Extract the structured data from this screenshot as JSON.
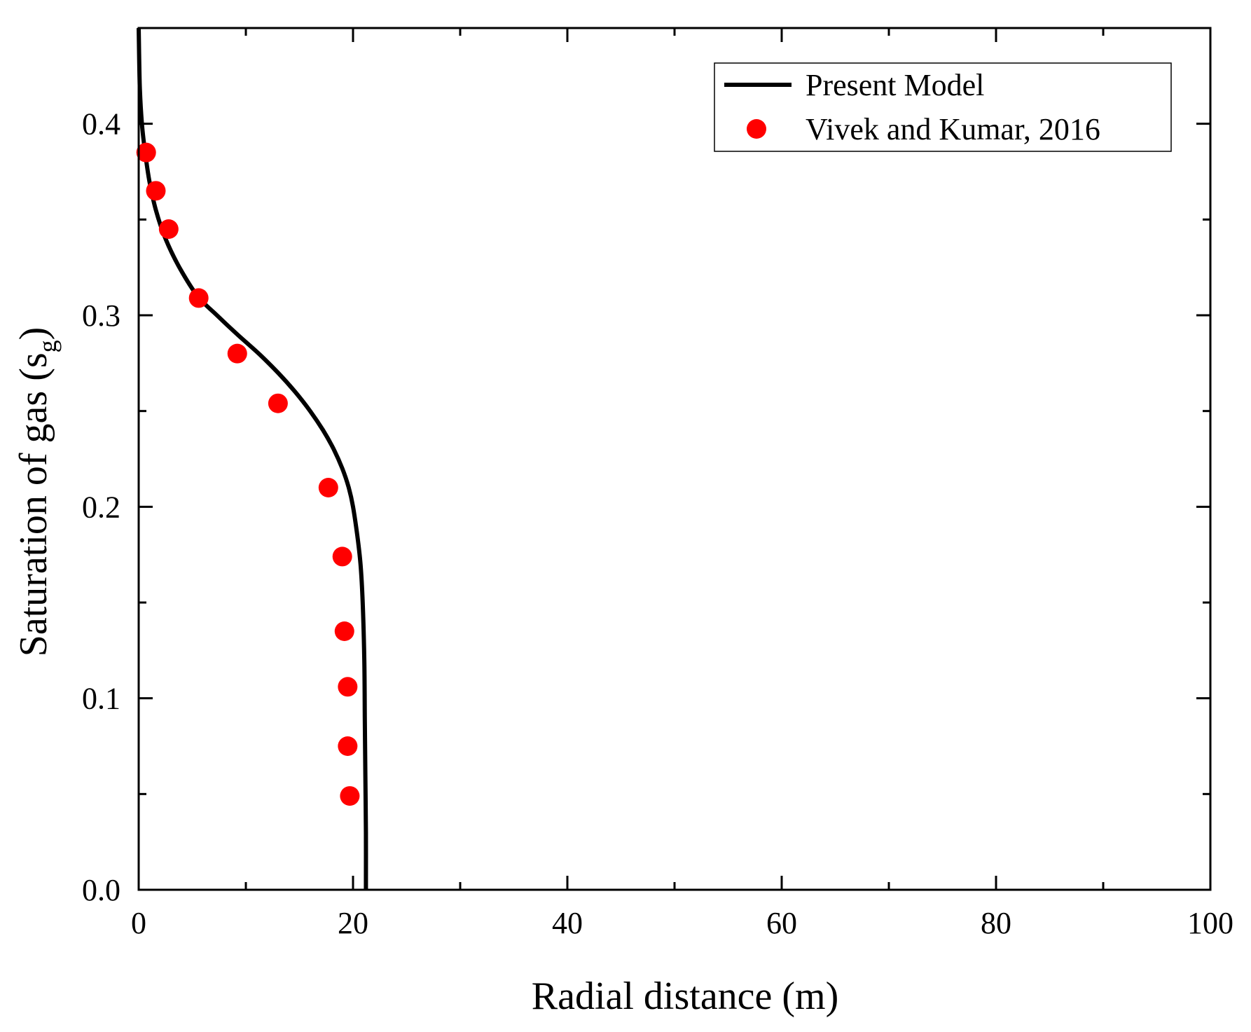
{
  "chart_data": {
    "type": "line",
    "title": "",
    "xlabel": "Radial distance (m)",
    "ylabel_main": "Saturation of gas (s",
    "ylabel_sub": "g",
    "ylabel_close": ")",
    "xlim": [
      0,
      100
    ],
    "ylim": [
      0,
      0.45
    ],
    "xticks": [
      0,
      20,
      40,
      60,
      80,
      100
    ],
    "xtick_labels": [
      "0",
      "20",
      "40",
      "60",
      "80",
      "100"
    ],
    "x_minor_ticks": [
      10,
      30,
      50,
      70,
      90
    ],
    "yticks": [
      0,
      0.1,
      0.2,
      0.3,
      0.4
    ],
    "ytick_labels": [
      "0.0",
      "0.1",
      "0.2",
      "0.3",
      "0.4"
    ],
    "y_minor_ticks": [
      0.05,
      0.15,
      0.25,
      0.35
    ],
    "grid": false,
    "legend_position": "top-right",
    "colors": {
      "model": "#000000",
      "reference": "#ff0000",
      "axes": "#000000"
    },
    "series": [
      {
        "name": "Present Model",
        "kind": "line",
        "x": [
          21.2,
          21.2,
          21.15,
          21.1,
          21.05,
          20.9,
          20.7,
          20.4,
          20.0,
          19.6,
          19.0,
          18.2,
          17.2,
          16.0,
          14.6,
          13.0,
          11.2,
          9.2,
          7.3,
          5.5,
          3.8,
          2.5,
          1.6,
          1.0,
          0.6,
          0.3,
          0.1,
          0.0
        ],
        "y": [
          0.0,
          0.03,
          0.06,
          0.09,
          0.12,
          0.15,
          0.17,
          0.185,
          0.2,
          0.21,
          0.22,
          0.23,
          0.24,
          0.25,
          0.26,
          0.27,
          0.28,
          0.29,
          0.3,
          0.31,
          0.325,
          0.34,
          0.355,
          0.37,
          0.385,
          0.4,
          0.42,
          0.45
        ]
      },
      {
        "name": "Vivek and Kumar, 2016",
        "kind": "scatter",
        "x": [
          0.7,
          1.6,
          2.8,
          5.6,
          9.2,
          13.0,
          17.7,
          19.0,
          19.2,
          19.5,
          19.5,
          19.7
        ],
        "y": [
          0.385,
          0.365,
          0.345,
          0.309,
          0.28,
          0.254,
          0.21,
          0.174,
          0.135,
          0.106,
          0.075,
          0.049
        ]
      }
    ]
  }
}
